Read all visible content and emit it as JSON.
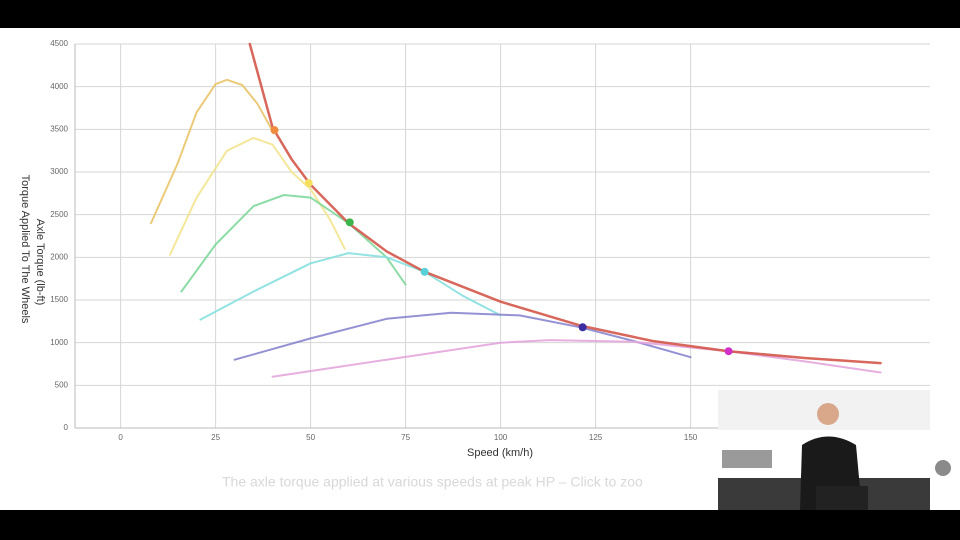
{
  "chart_data": {
    "type": "line",
    "xlabel": "Speed (km/h)",
    "ylabel": "Axle Torque (lb-ft)",
    "ylabel2": "Torque Applied To The Wheels",
    "xlim": [
      -12,
      213
    ],
    "ylim": [
      0,
      4500
    ],
    "xticks": [
      0,
      25,
      50,
      75,
      100,
      125,
      150
    ],
    "yticks": [
      0,
      500,
      1000,
      1500,
      2000,
      2500,
      3000,
      3500,
      4000,
      4500
    ],
    "grid": true,
    "series": [
      {
        "color": "#e9c46a",
        "x": [
          8,
          15,
          20,
          25,
          28,
          32,
          36,
          40
        ],
        "values": [
          2400,
          3100,
          3700,
          4030,
          4080,
          4020,
          3800,
          3480
        ]
      },
      {
        "color": "#f3e48e",
        "x": [
          13,
          20,
          28,
          35,
          40,
          45,
          50,
          55,
          59
        ],
        "values": [
          2030,
          2700,
          3250,
          3400,
          3320,
          3000,
          2800,
          2450,
          2100
        ]
      },
      {
        "color": "#7fd89c",
        "x": [
          16,
          25,
          35,
          43,
          50,
          60,
          70,
          75
        ],
        "values": [
          1600,
          2150,
          2600,
          2730,
          2700,
          2400,
          2000,
          1680
        ]
      },
      {
        "color": "#86e0df",
        "x": [
          21,
          35,
          50,
          60,
          70,
          80,
          90,
          100
        ],
        "values": [
          1270,
          1600,
          1930,
          2050,
          2000,
          1830,
          1550,
          1320
        ]
      },
      {
        "color": "#8a86cf",
        "x": [
          30,
          50,
          70,
          87,
          105,
          121,
          135,
          150
        ],
        "values": [
          800,
          1050,
          1280,
          1350,
          1320,
          1180,
          1020,
          830
        ]
      },
      {
        "color": "#e3a6dc",
        "x": [
          40,
          70,
          100,
          113,
          135,
          160,
          180,
          200
        ],
        "values": [
          600,
          800,
          1000,
          1030,
          1010,
          900,
          780,
          650
        ]
      },
      {
        "color": "#d4574a",
        "x": [
          34,
          40,
          45,
          50,
          60,
          70,
          80,
          100,
          121,
          140,
          160,
          180,
          200
        ],
        "values": [
          4500,
          3520,
          3150,
          2850,
          2400,
          2070,
          1830,
          1480,
          1200,
          1020,
          900,
          820,
          760
        ]
      }
    ],
    "markers": [
      {
        "color": "#f08a3c",
        "x": 40.5,
        "value": 3490
      },
      {
        "color": "#f5e060",
        "x": 49.5,
        "value": 2870
      },
      {
        "color": "#3bb54a",
        "x": 60.3,
        "value": 2410
      },
      {
        "color": "#58d0d8",
        "x": 80,
        "value": 1830
      },
      {
        "color": "#3a2ea0",
        "x": 121.6,
        "value": 1180
      },
      {
        "color": "#d030c8",
        "x": 160,
        "value": 900
      }
    ]
  },
  "caption": "The axle torque applied at various speeds at peak HP – Click to zoo"
}
